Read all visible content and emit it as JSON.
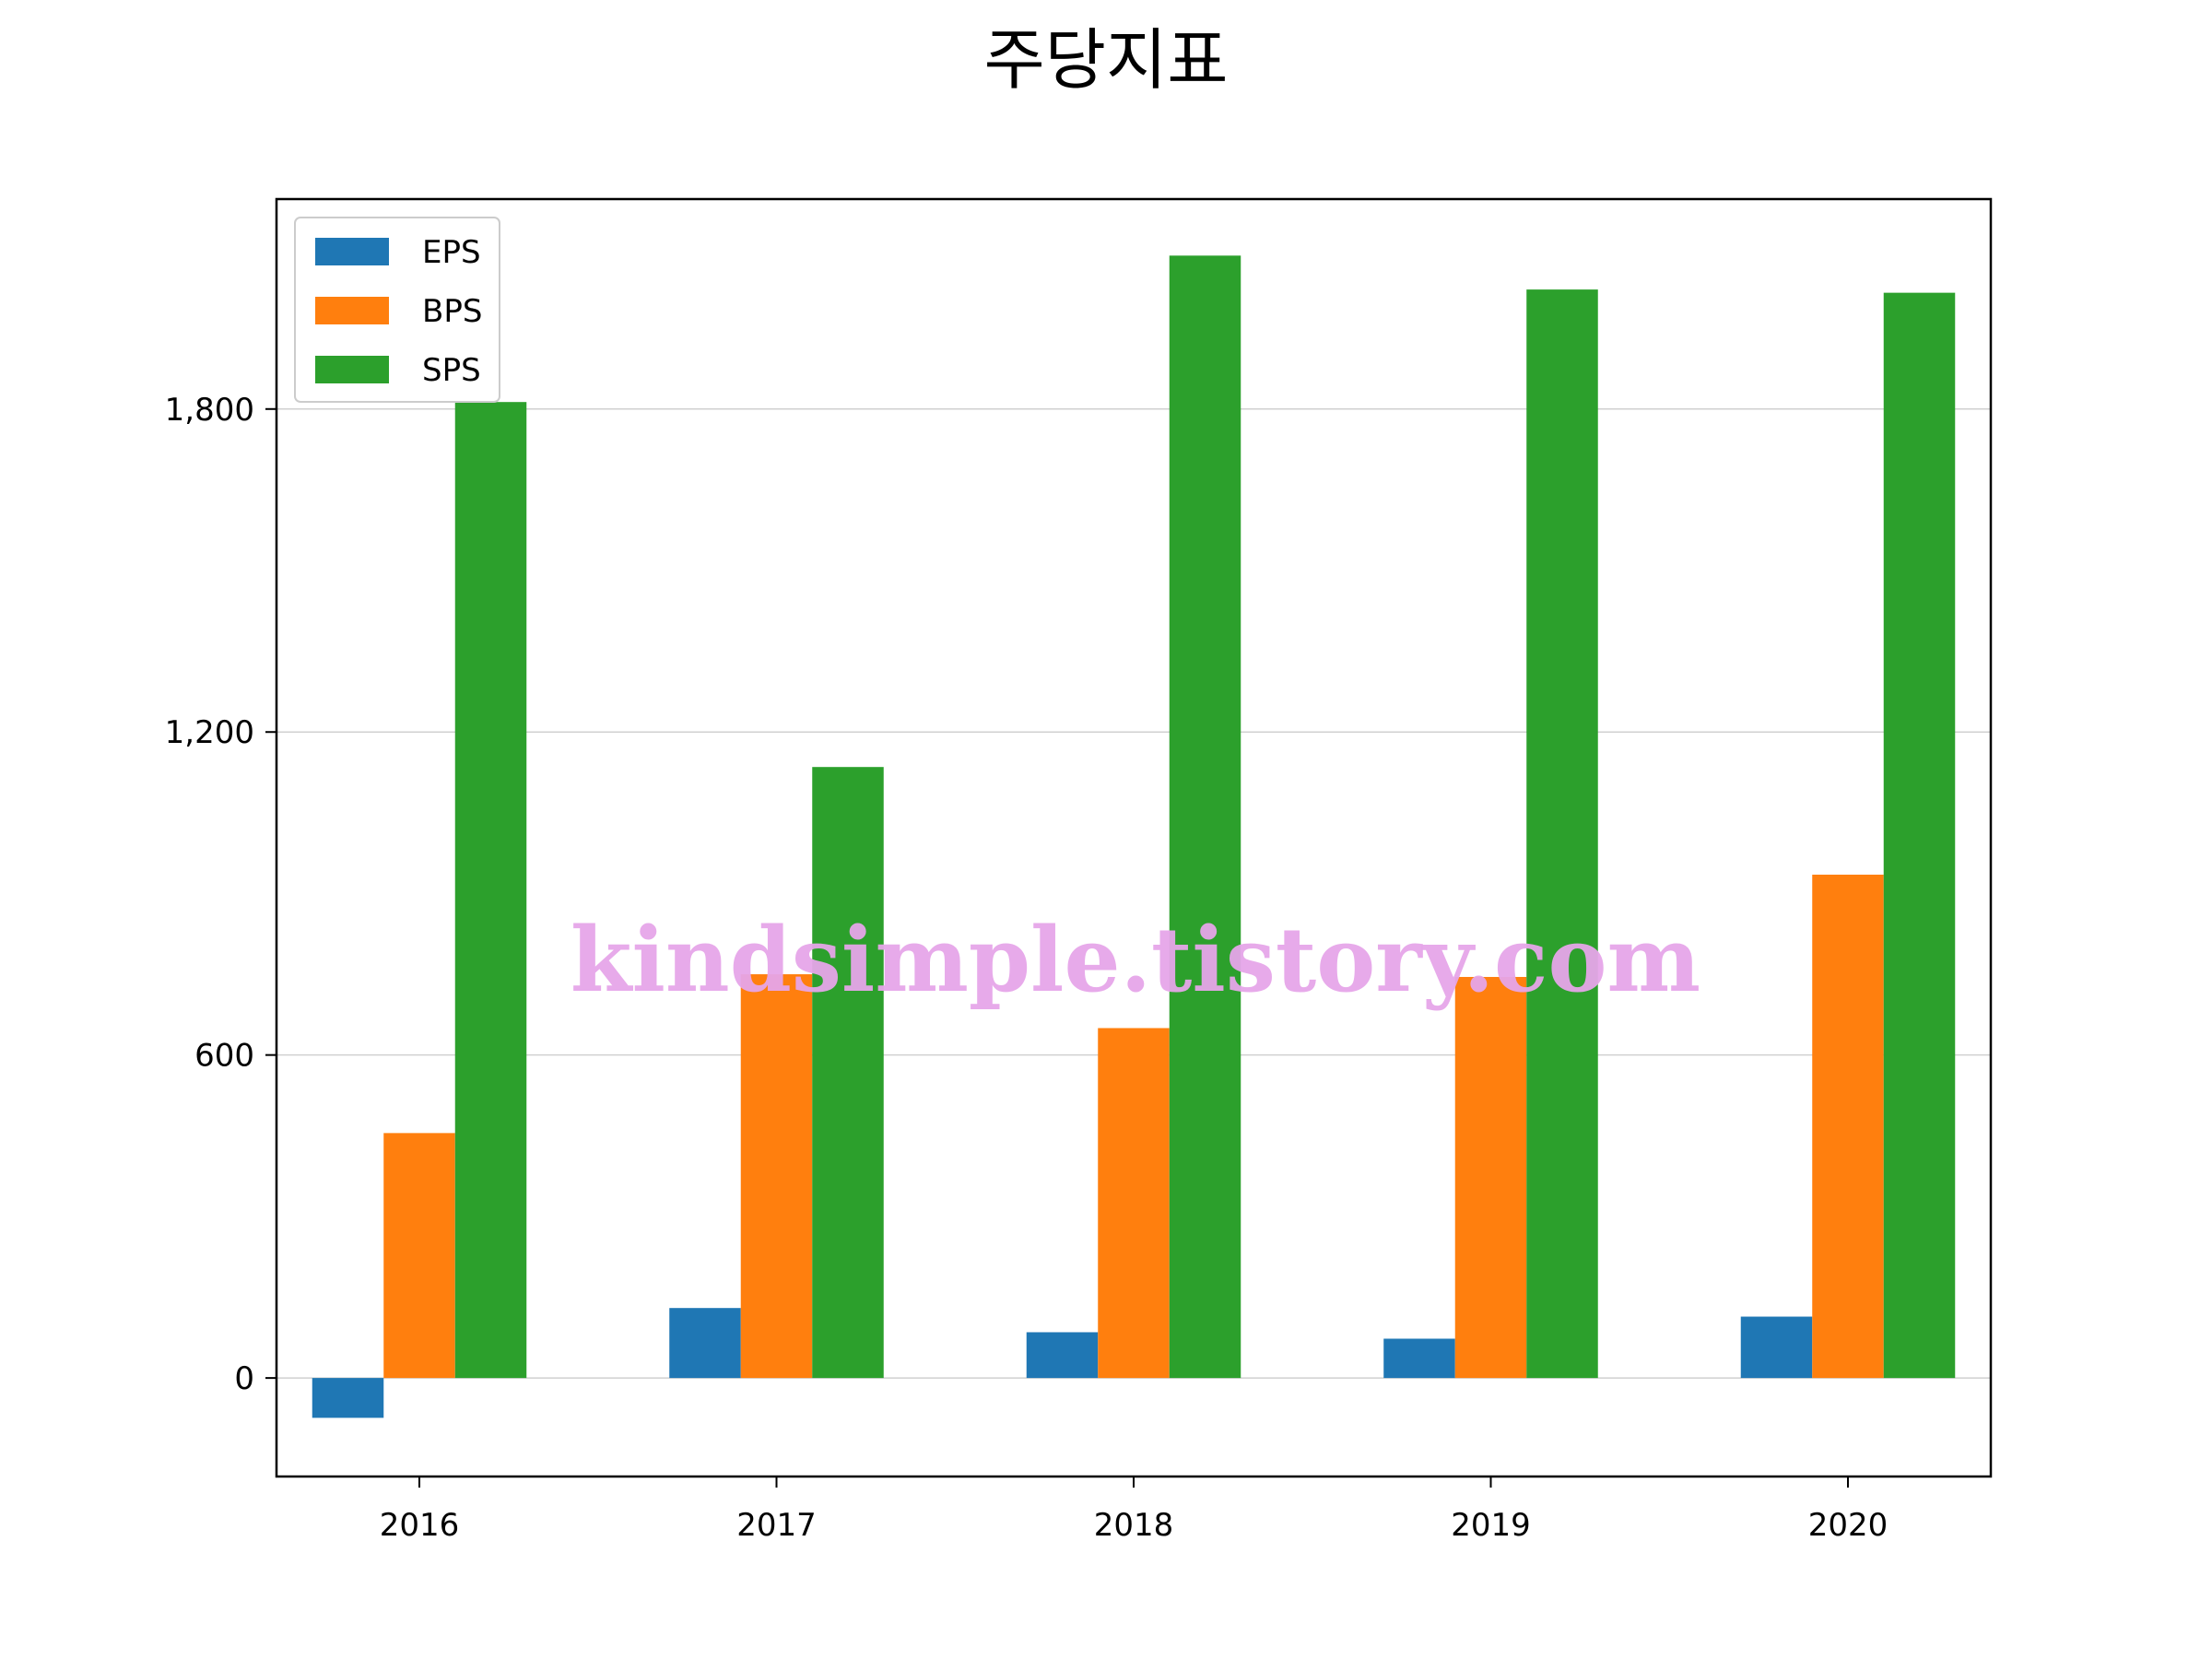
{
  "chart_data": {
    "type": "bar",
    "title": "주당지표",
    "xlabel": "",
    "ylabel": "",
    "categories": [
      "2016",
      "2017",
      "2018",
      "2019",
      "2020"
    ],
    "series": [
      {
        "name": "EPS",
        "color": "#1f77b4",
        "values": [
          -74,
          130,
          85,
          73,
          114
        ]
      },
      {
        "name": "BPS",
        "color": "#ff7f0e",
        "values": [
          455,
          750,
          650,
          745,
          935
        ]
      },
      {
        "name": "SPS",
        "color": "#2ca02c",
        "values": [
          1813,
          1135,
          2085,
          2022,
          2016
        ]
      }
    ],
    "yticks": [
      0,
      600,
      1200,
      1800
    ],
    "ytick_labels": [
      "0",
      "600",
      "1,200",
      "1,800"
    ],
    "ylim": [
      -183,
      2190
    ],
    "grid": "y",
    "legend": "top-left",
    "watermark": "kindsimple.tistory.com"
  }
}
